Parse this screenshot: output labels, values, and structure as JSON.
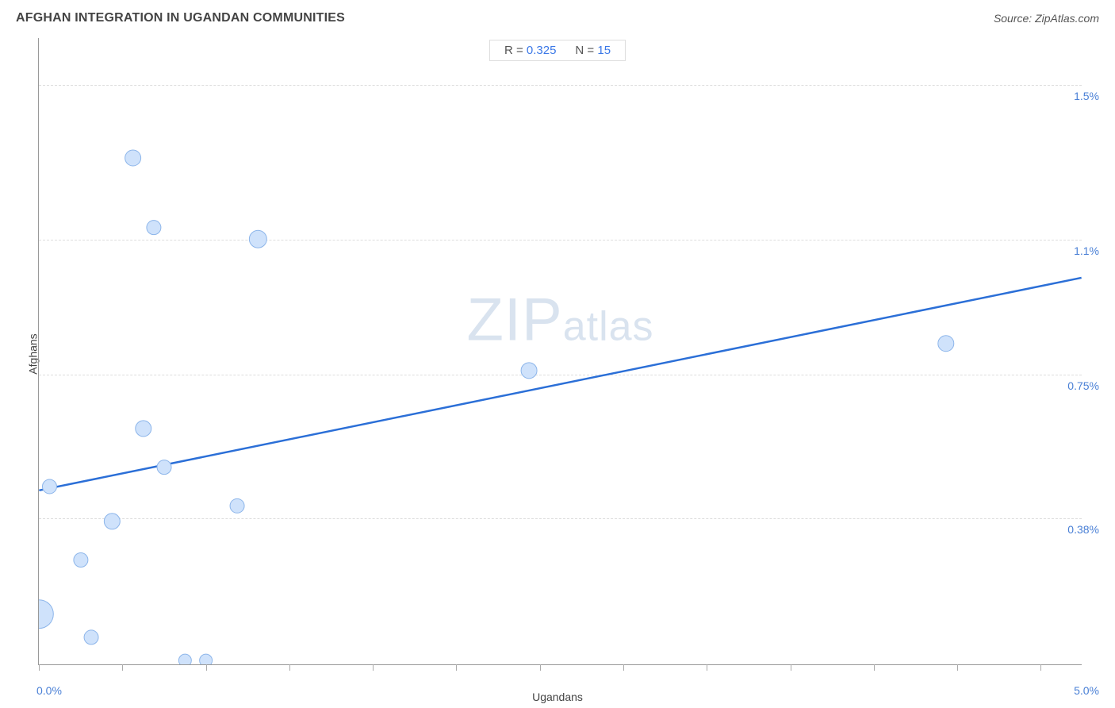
{
  "header": {
    "title": "AFGHAN INTEGRATION IN UGANDAN COMMUNITIES",
    "source": "Source: ZipAtlas.com"
  },
  "stats": {
    "r_label": "R =",
    "r_value": "0.325",
    "n_label": "N =",
    "n_value": "15"
  },
  "watermark": {
    "zip": "ZIP",
    "atlas": "atlas"
  },
  "axes": {
    "xlabel": "Ugandans",
    "ylabel": "Afghans",
    "xmin_label": "0.0%",
    "xmax_label": "5.0%",
    "y_ticks": [
      {
        "label": "0.38%",
        "value": 0.38
      },
      {
        "label": "0.75%",
        "value": 0.75
      },
      {
        "label": "1.1%",
        "value": 1.1
      },
      {
        "label": "1.5%",
        "value": 1.5
      }
    ]
  },
  "chart": {
    "type": "scatter",
    "xlim": [
      0.0,
      5.0
    ],
    "ylim": [
      0.0,
      1.62
    ],
    "x_tick_positions": [
      0,
      0.4,
      0.8,
      1.2,
      1.6,
      2.0,
      2.4,
      2.8,
      3.2,
      3.6,
      4.0,
      4.4,
      4.8
    ],
    "point_fill": "#cfe2fb",
    "point_stroke": "#8cb5ea",
    "point_stroke_width": 1,
    "trend_line_color": "#2b6fd7",
    "trend_line_width": 2.5,
    "grid_color": "#dddddd",
    "axis_color": "#999999",
    "text_color": "#444444",
    "value_color": "#4a80d6",
    "background_color": "#ffffff",
    "trend_line": {
      "x1": 0.0,
      "y1": 0.45,
      "x2": 5.0,
      "y2": 1.0
    },
    "points": [
      {
        "x": 0.0,
        "y": 0.13,
        "r": 18
      },
      {
        "x": 0.05,
        "y": 0.46,
        "r": 9
      },
      {
        "x": 0.2,
        "y": 0.27,
        "r": 9
      },
      {
        "x": 0.25,
        "y": 0.07,
        "r": 9
      },
      {
        "x": 0.35,
        "y": 0.37,
        "r": 10
      },
      {
        "x": 0.45,
        "y": 1.31,
        "r": 10
      },
      {
        "x": 0.5,
        "y": 0.61,
        "r": 10
      },
      {
        "x": 0.55,
        "y": 1.13,
        "r": 9
      },
      {
        "x": 0.6,
        "y": 0.51,
        "r": 9
      },
      {
        "x": 0.7,
        "y": 0.01,
        "r": 8
      },
      {
        "x": 0.8,
        "y": 0.01,
        "r": 8
      },
      {
        "x": 0.95,
        "y": 0.41,
        "r": 9
      },
      {
        "x": 1.05,
        "y": 1.1,
        "r": 11
      },
      {
        "x": 2.35,
        "y": 0.76,
        "r": 10
      },
      {
        "x": 4.35,
        "y": 0.83,
        "r": 10
      }
    ]
  }
}
